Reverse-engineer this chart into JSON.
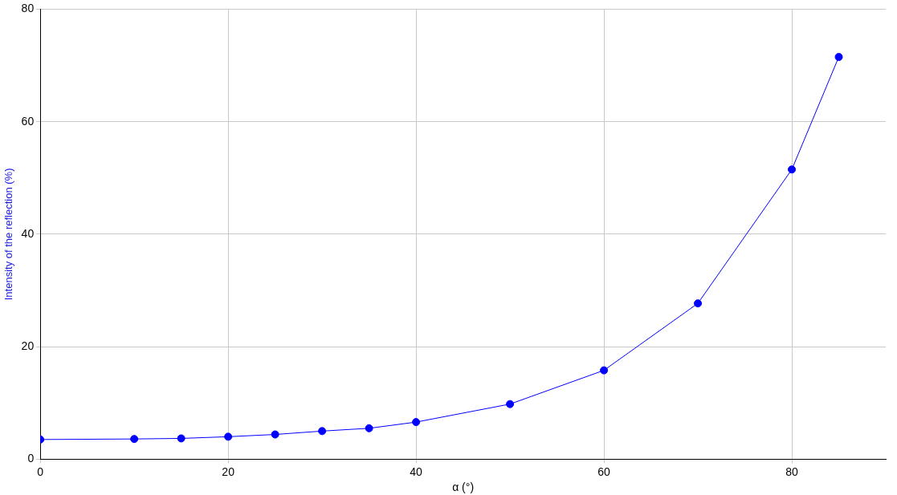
{
  "chart_data": {
    "type": "line",
    "xlabel": "α (°)",
    "ylabel": "Intensity of the reflection (%)",
    "x": [
      0,
      10,
      15,
      20,
      25,
      30,
      35,
      40,
      50,
      60,
      70,
      80,
      85
    ],
    "series": [
      {
        "color": "#0000ff",
        "values": [
          3.5,
          3.6,
          3.7,
          4.0,
          4.4,
          5.0,
          5.5,
          6.6,
          9.8,
          15.8,
          27.7,
          51.5,
          71.5
        ]
      }
    ],
    "xlim": [
      0,
      90
    ],
    "xticks": [
      0,
      20,
      40,
      60,
      80
    ],
    "ylim": [
      0,
      80
    ],
    "yticks": [
      0,
      20,
      40,
      60,
      80
    ],
    "grid": true,
    "marker": "circle",
    "line_style": "solid",
    "legend": false
  }
}
